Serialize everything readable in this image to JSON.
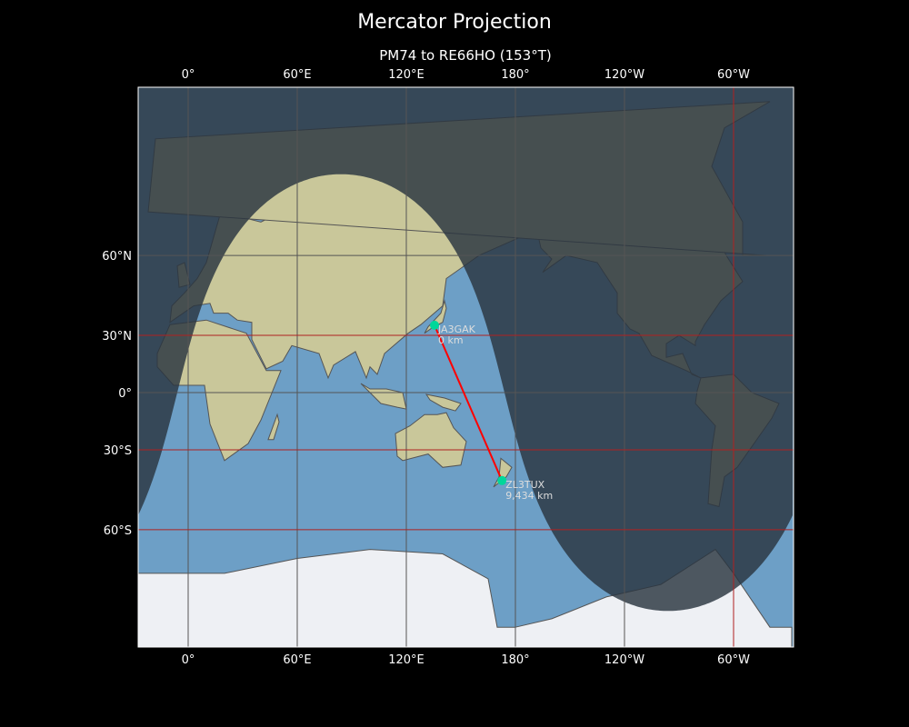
{
  "figure": {
    "title": "Mercator Projection",
    "subtitle": "PM74 to RE66HO (153°T)"
  },
  "axes": {
    "lon_ticks": [
      {
        "lon": 0,
        "label": "0°"
      },
      {
        "lon": 60,
        "label": "60°E"
      },
      {
        "lon": 120,
        "label": "120°E"
      },
      {
        "lon": 180,
        "label": "180°"
      },
      {
        "lon": 240,
        "label": "120°W"
      },
      {
        "lon": 300,
        "label": "60°W"
      }
    ],
    "lat_ticks": [
      {
        "lat": 60,
        "label": "60°N"
      },
      {
        "lat": 30,
        "label": "30°N"
      },
      {
        "lat": 0,
        "label": "0°"
      },
      {
        "lat": -30,
        "label": "30°S"
      },
      {
        "lat": -60,
        "label": "60°S"
      }
    ]
  },
  "path": {
    "from": {
      "call": "JA3GAK",
      "distance": "0 km",
      "lon": 135.5,
      "lat": 34.7
    },
    "to": {
      "call": "ZL3TUX",
      "distance": "9,434 km",
      "lon": 172.6,
      "lat": -43.5
    }
  },
  "colors": {
    "background": "#000000",
    "ocean": "#6d9fc6",
    "land": "#c9c79a",
    "night": "#2a3440",
    "path_line": "#ff0000",
    "station_marker": "#00d79a",
    "grid": "#555555",
    "grid_highlight": "#b02020"
  }
}
